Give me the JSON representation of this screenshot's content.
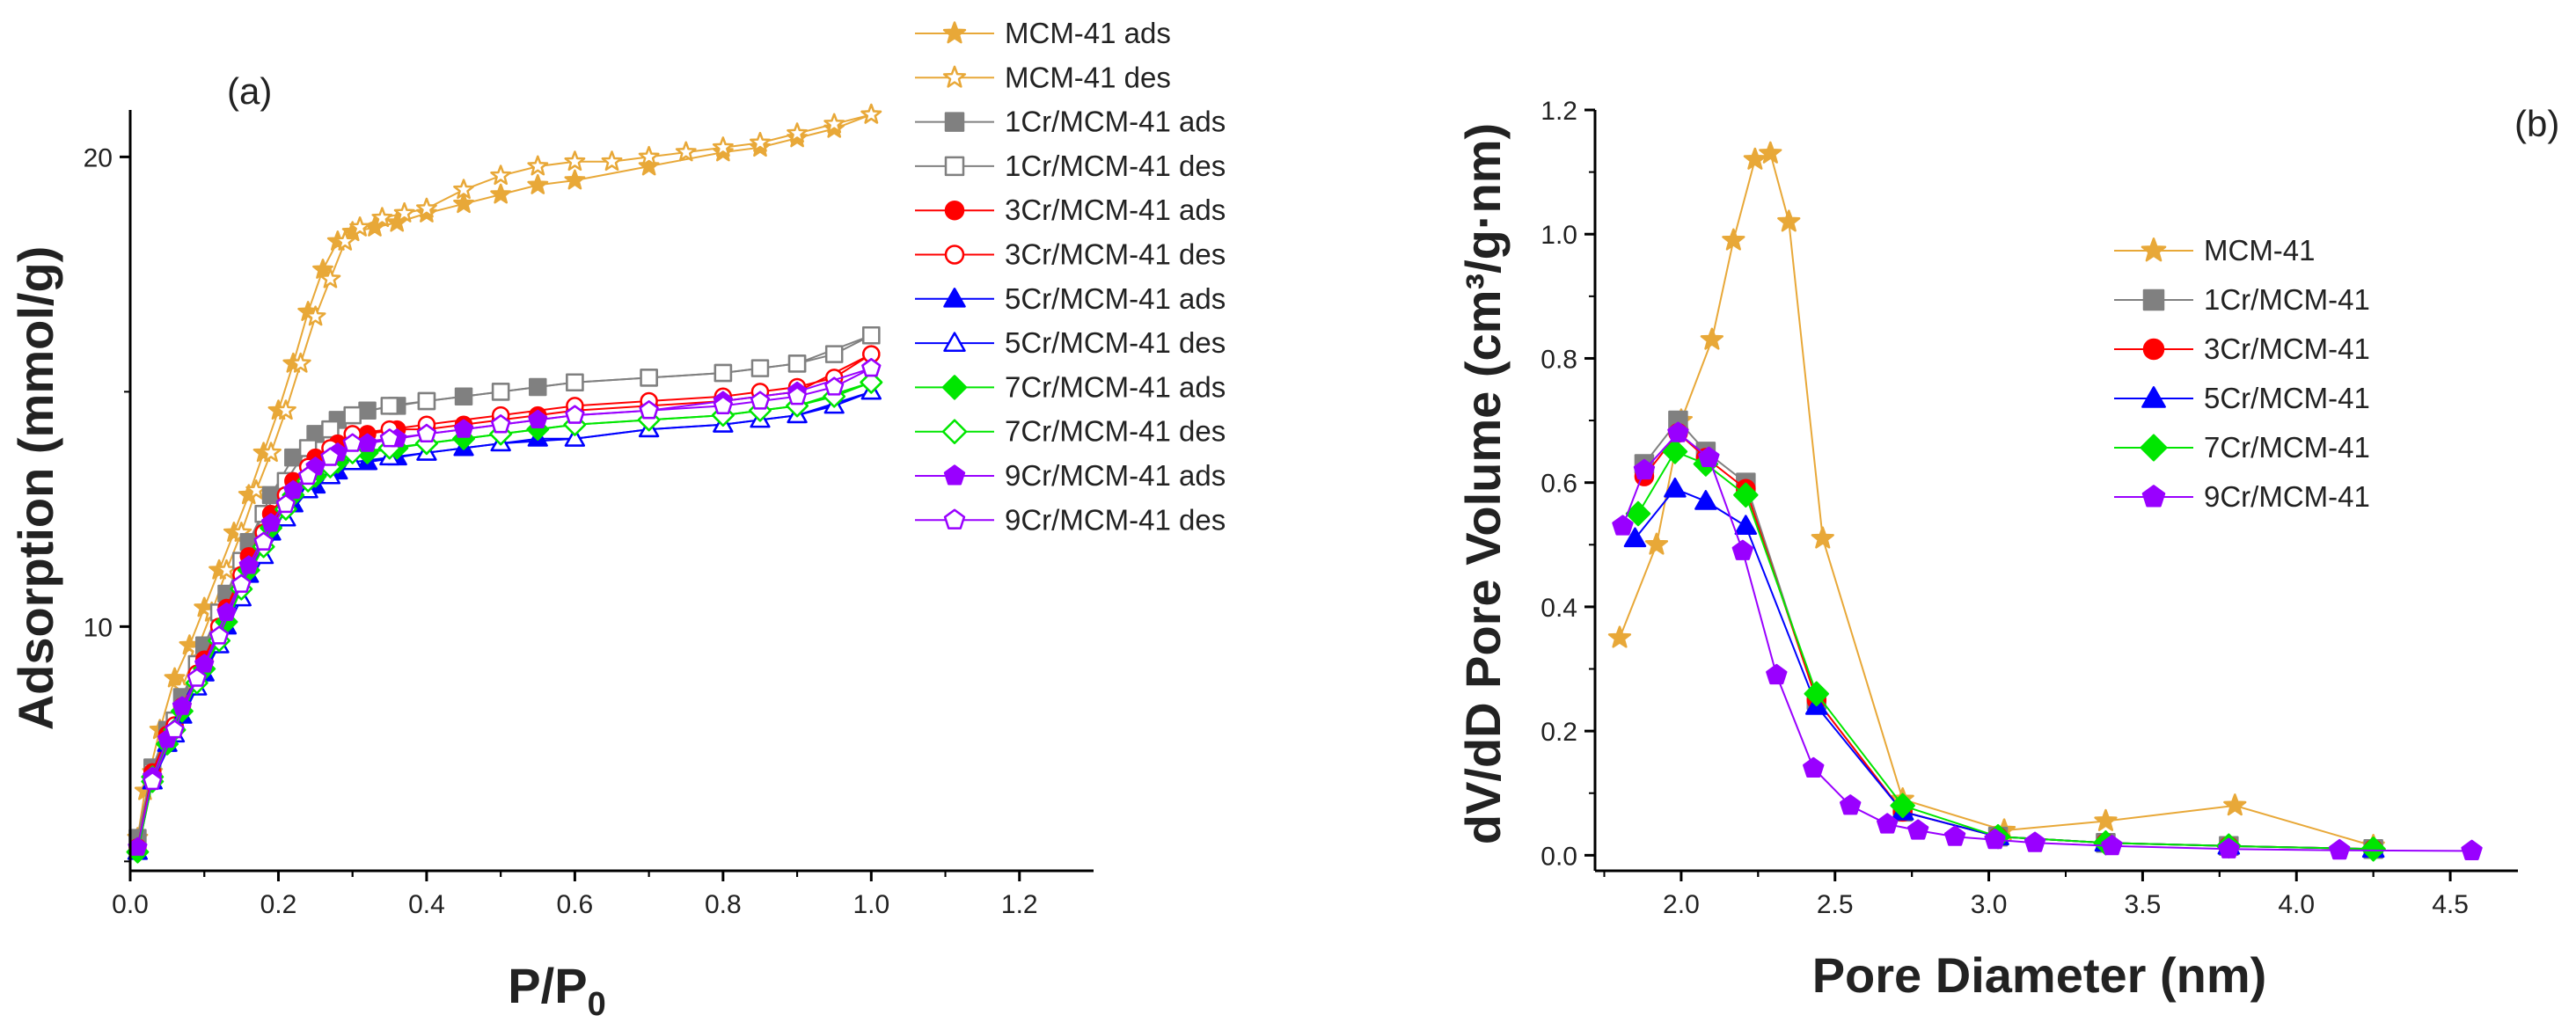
{
  "colors": {
    "MCM41": "#E8A838",
    "Cr1": "#808080",
    "Cr3": "#FF0000",
    "Cr5": "#0000FF",
    "Cr7": "#00E600",
    "Cr9": "#9900FF",
    "axis": "#000000"
  },
  "chart_data": [
    {
      "type": "line",
      "panel_label": "(a)",
      "xlabel": "P/P",
      "xlabel_sub": "0",
      "ylabel": "Adsorption (mmol/g)",
      "xlim": [
        0.0,
        1.3
      ],
      "ylim": [
        4.8,
        21.0
      ],
      "xticks": [
        0.0,
        0.2,
        0.4,
        0.6,
        0.8,
        1.0,
        1.2
      ],
      "xtick_labels": [
        "0.0",
        "0.2",
        "0.4",
        "0.6",
        "0.8",
        "1.0",
        "1.2"
      ],
      "yticks": [
        10,
        20
      ],
      "ytick_labels": [
        "10",
        "20"
      ],
      "legend_position": "top-right outside",
      "series": [
        {
          "name": "MCM-41 ads",
          "color_key": "MCM41",
          "marker": "star",
          "filled": true,
          "x": [
            0.01,
            0.02,
            0.04,
            0.06,
            0.08,
            0.1,
            0.12,
            0.14,
            0.16,
            0.18,
            0.2,
            0.22,
            0.24,
            0.26,
            0.28,
            0.3,
            0.33,
            0.36,
            0.4,
            0.45,
            0.5,
            0.55,
            0.6,
            0.7,
            0.8,
            0.85,
            0.9,
            0.95,
            1.0
          ],
          "y": [
            5.5,
            6.5,
            7.8,
            8.9,
            9.6,
            10.4,
            11.2,
            12.0,
            12.8,
            13.7,
            14.6,
            15.6,
            16.7,
            17.6,
            18.2,
            18.4,
            18.5,
            18.6,
            18.8,
            19.0,
            19.2,
            19.4,
            19.5,
            19.8,
            20.1,
            20.2,
            20.4,
            20.6,
            20.9
          ]
        },
        {
          "name": "MCM-41 des",
          "color_key": "MCM41",
          "marker": "star",
          "filled": false,
          "x": [
            1.0,
            0.95,
            0.9,
            0.85,
            0.8,
            0.75,
            0.7,
            0.65,
            0.6,
            0.55,
            0.5,
            0.45,
            0.4,
            0.37,
            0.34,
            0.31,
            0.29,
            0.27,
            0.25,
            0.23,
            0.21,
            0.19,
            0.17,
            0.15,
            0.13,
            0.11,
            0.09,
            0.07,
            0.05,
            0.03
          ],
          "y": [
            20.9,
            20.7,
            20.5,
            20.3,
            20.2,
            20.1,
            20.0,
            19.9,
            19.9,
            19.8,
            19.6,
            19.3,
            18.9,
            18.8,
            18.7,
            18.5,
            18.2,
            17.4,
            16.6,
            15.6,
            14.6,
            13.7,
            12.9,
            12.0,
            11.2,
            10.3,
            9.5,
            8.7,
            7.8,
            6.9
          ]
        },
        {
          "name": "1Cr/MCM-41 ads",
          "color_key": "Cr1",
          "marker": "square",
          "filled": true,
          "x": [
            0.01,
            0.03,
            0.05,
            0.07,
            0.1,
            0.13,
            0.16,
            0.19,
            0.22,
            0.25,
            0.28,
            0.32,
            0.36,
            0.4,
            0.45,
            0.5,
            0.55,
            0.6,
            0.7,
            0.8,
            0.9,
            1.0
          ],
          "y": [
            5.5,
            7.0,
            7.8,
            8.5,
            9.6,
            10.7,
            11.8,
            12.8,
            13.6,
            14.1,
            14.4,
            14.6,
            14.7,
            14.8,
            14.9,
            15.0,
            15.1,
            15.2,
            15.3,
            15.4,
            15.6,
            16.2
          ]
        },
        {
          "name": "1Cr/MCM-41 des",
          "color_key": "Cr1",
          "marker": "square",
          "filled": false,
          "x": [
            1.0,
            0.95,
            0.9,
            0.85,
            0.8,
            0.7,
            0.6,
            0.5,
            0.4,
            0.35,
            0.3,
            0.27,
            0.24,
            0.21,
            0.18,
            0.15,
            0.12,
            0.09,
            0.06,
            0.03
          ],
          "y": [
            16.2,
            15.8,
            15.6,
            15.5,
            15.4,
            15.3,
            15.2,
            15.0,
            14.8,
            14.7,
            14.5,
            14.2,
            13.8,
            13.1,
            12.4,
            11.4,
            10.3,
            9.2,
            8.0,
            6.9
          ]
        },
        {
          "name": "3Cr/MCM-41 ads",
          "color_key": "Cr3",
          "marker": "circle",
          "filled": true,
          "x": [
            0.01,
            0.03,
            0.05,
            0.07,
            0.1,
            0.13,
            0.16,
            0.19,
            0.22,
            0.25,
            0.28,
            0.32,
            0.36,
            0.4,
            0.45,
            0.5,
            0.55,
            0.6,
            0.7,
            0.8,
            0.9,
            1.0
          ],
          "y": [
            5.3,
            6.9,
            7.7,
            8.3,
            9.3,
            10.4,
            11.5,
            12.4,
            13.1,
            13.6,
            13.9,
            14.1,
            14.2,
            14.2,
            14.3,
            14.4,
            14.5,
            14.6,
            14.7,
            14.8,
            15.0,
            15.8
          ]
        },
        {
          "name": "3Cr/MCM-41 des",
          "color_key": "Cr3",
          "marker": "circle",
          "filled": false,
          "x": [
            1.0,
            0.95,
            0.9,
            0.85,
            0.8,
            0.7,
            0.6,
            0.5,
            0.4,
            0.35,
            0.3,
            0.27,
            0.24,
            0.21,
            0.18,
            0.15,
            0.12,
            0.09,
            0.06,
            0.03
          ],
          "y": [
            15.8,
            15.3,
            15.1,
            15.0,
            14.9,
            14.8,
            14.7,
            14.5,
            14.3,
            14.2,
            14.1,
            13.8,
            13.4,
            12.8,
            12.0,
            11.1,
            10.0,
            9.0,
            7.9,
            6.8
          ]
        },
        {
          "name": "5Cr/MCM-41 ads",
          "color_key": "Cr5",
          "marker": "triangle",
          "filled": true,
          "x": [
            0.01,
            0.03,
            0.05,
            0.07,
            0.1,
            0.13,
            0.16,
            0.19,
            0.22,
            0.25,
            0.28,
            0.32,
            0.36,
            0.4,
            0.45,
            0.5,
            0.55,
            0.6,
            0.7,
            0.8,
            0.9,
            1.0
          ],
          "y": [
            5.2,
            6.7,
            7.5,
            8.1,
            9.0,
            10.0,
            11.1,
            12.0,
            12.6,
            13.0,
            13.3,
            13.5,
            13.6,
            13.7,
            13.8,
            13.9,
            14.0,
            14.0,
            14.2,
            14.3,
            14.5,
            15.0
          ]
        },
        {
          "name": "5Cr/MCM-41 des",
          "color_key": "Cr5",
          "marker": "triangle",
          "filled": false,
          "x": [
            1.0,
            0.95,
            0.9,
            0.85,
            0.8,
            0.7,
            0.6,
            0.5,
            0.4,
            0.35,
            0.3,
            0.27,
            0.24,
            0.21,
            0.18,
            0.15,
            0.12,
            0.09,
            0.06,
            0.03
          ],
          "y": [
            15.0,
            14.7,
            14.5,
            14.4,
            14.3,
            14.2,
            14.0,
            13.9,
            13.7,
            13.6,
            13.5,
            13.2,
            12.9,
            12.3,
            11.5,
            10.6,
            9.6,
            8.7,
            7.7,
            6.7
          ]
        },
        {
          "name": "7Cr/MCM-41 ads",
          "color_key": "Cr7",
          "marker": "diamond",
          "filled": true,
          "x": [
            0.01,
            0.03,
            0.05,
            0.07,
            0.1,
            0.13,
            0.16,
            0.19,
            0.22,
            0.25,
            0.28,
            0.32,
            0.36,
            0.4,
            0.45,
            0.5,
            0.55,
            0.6,
            0.7,
            0.8,
            0.9,
            1.0
          ],
          "y": [
            5.2,
            6.7,
            7.5,
            8.2,
            9.1,
            10.1,
            11.2,
            12.1,
            12.8,
            13.2,
            13.5,
            13.7,
            13.8,
            13.9,
            14.0,
            14.1,
            14.2,
            14.3,
            14.4,
            14.5,
            14.7,
            15.2
          ]
        },
        {
          "name": "7Cr/MCM-41 des",
          "color_key": "Cr7",
          "marker": "diamond",
          "filled": false,
          "x": [
            1.0,
            0.95,
            0.9,
            0.85,
            0.8,
            0.7,
            0.6,
            0.5,
            0.4,
            0.35,
            0.3,
            0.27,
            0.24,
            0.21,
            0.18,
            0.15,
            0.12,
            0.09,
            0.06,
            0.03
          ],
          "y": [
            15.2,
            14.9,
            14.7,
            14.6,
            14.5,
            14.4,
            14.3,
            14.1,
            13.9,
            13.8,
            13.7,
            13.4,
            13.1,
            12.5,
            11.7,
            10.8,
            9.7,
            8.8,
            7.8,
            6.8
          ]
        },
        {
          "name": "9Cr/MCM-41 ads",
          "color_key": "Cr9",
          "marker": "pentagon",
          "filled": true,
          "x": [
            0.01,
            0.03,
            0.05,
            0.07,
            0.1,
            0.13,
            0.16,
            0.19,
            0.22,
            0.25,
            0.28,
            0.32,
            0.36,
            0.4,
            0.45,
            0.5,
            0.55,
            0.6,
            0.7,
            0.8,
            0.9,
            1.0
          ],
          "y": [
            5.3,
            6.8,
            7.6,
            8.3,
            9.2,
            10.3,
            11.3,
            12.2,
            12.9,
            13.4,
            13.7,
            13.9,
            14.0,
            14.1,
            14.2,
            14.3,
            14.4,
            14.5,
            14.6,
            14.8,
            15.0,
            15.5
          ]
        },
        {
          "name": "9Cr/MCM-41 des",
          "color_key": "Cr9",
          "marker": "pentagon",
          "filled": false,
          "x": [
            1.0,
            0.95,
            0.9,
            0.85,
            0.8,
            0.7,
            0.6,
            0.5,
            0.4,
            0.35,
            0.3,
            0.27,
            0.24,
            0.21,
            0.18,
            0.15,
            0.12,
            0.09,
            0.06,
            0.03
          ],
          "y": [
            15.5,
            15.1,
            14.9,
            14.8,
            14.7,
            14.6,
            14.5,
            14.3,
            14.1,
            14.0,
            13.9,
            13.6,
            13.2,
            12.6,
            11.8,
            10.9,
            9.8,
            8.9,
            7.8,
            6.7
          ]
        }
      ]
    },
    {
      "type": "line",
      "panel_label": "(b)",
      "xlabel": "Pore Diameter (nm)",
      "ylabel": "dV/dD Pore Volume (cm³/g·nm)",
      "xlim": [
        1.72,
        4.72
      ],
      "ylim": [
        -0.025,
        1.2
      ],
      "xticks": [
        2.0,
        2.5,
        3.0,
        3.5,
        4.0,
        4.5
      ],
      "xtick_labels": [
        "2.0",
        "2.5",
        "3.0",
        "3.5",
        "4.0",
        "4.5"
      ],
      "yticks": [
        0.0,
        0.2,
        0.4,
        0.6,
        0.8,
        1.0,
        1.2
      ],
      "ytick_labels": [
        "0.0",
        "0.2",
        "0.4",
        "0.6",
        "0.8",
        "1.0",
        "1.2"
      ],
      "legend_position": "center-right",
      "series": [
        {
          "name": "MCM-41",
          "color_key": "MCM41",
          "marker": "star",
          "filled": true,
          "x": [
            1.8,
            1.92,
            2.0,
            2.1,
            2.17,
            2.24,
            2.29,
            2.35,
            2.46,
            2.72,
            3.05,
            3.38,
            3.8,
            4.25
          ],
          "y": [
            0.35,
            0.5,
            0.7,
            0.83,
            0.99,
            1.12,
            1.13,
            1.02,
            0.51,
            0.09,
            0.04,
            0.055,
            0.08,
            0.015
          ]
        },
        {
          "name": "1Cr/MCM-41",
          "color_key": "Cr1",
          "marker": "square",
          "filled": true,
          "x": [
            1.88,
            1.99,
            2.08,
            2.21,
            2.44,
            2.72,
            3.03,
            3.38,
            3.78,
            4.25
          ],
          "y": [
            0.63,
            0.7,
            0.65,
            0.6,
            0.25,
            0.07,
            0.03,
            0.02,
            0.015,
            0.01
          ]
        },
        {
          "name": "3Cr/MCM-41",
          "color_key": "Cr3",
          "marker": "circle",
          "filled": true,
          "x": [
            1.88,
            1.99,
            2.08,
            2.21,
            2.44,
            2.72,
            3.03,
            3.38,
            3.78,
            4.25
          ],
          "y": [
            0.61,
            0.68,
            0.64,
            0.59,
            0.25,
            0.07,
            0.03,
            0.02,
            0.015,
            0.01
          ]
        },
        {
          "name": "5Cr/MCM-41",
          "color_key": "Cr5",
          "marker": "triangle",
          "filled": true,
          "x": [
            1.85,
            1.98,
            2.08,
            2.21,
            2.44,
            2.72,
            3.03,
            3.38,
            3.78,
            4.25
          ],
          "y": [
            0.51,
            0.59,
            0.57,
            0.53,
            0.24,
            0.07,
            0.03,
            0.02,
            0.015,
            0.01
          ]
        },
        {
          "name": "7Cr/MCM-41",
          "color_key": "Cr7",
          "marker": "diamond",
          "filled": true,
          "x": [
            1.86,
            1.98,
            2.08,
            2.21,
            2.44,
            2.72,
            3.03,
            3.38,
            3.78,
            4.25
          ],
          "y": [
            0.55,
            0.65,
            0.63,
            0.58,
            0.26,
            0.08,
            0.03,
            0.02,
            0.015,
            0.01
          ]
        },
        {
          "name": "9Cr/MCM-41",
          "color_key": "Cr9",
          "marker": "pentagon",
          "filled": true,
          "x": [
            1.81,
            1.88,
            1.99,
            2.09,
            2.2,
            2.31,
            2.43,
            2.55,
            2.67,
            2.77,
            2.89,
            3.02,
            3.15,
            3.4,
            3.78,
            4.14,
            4.57
          ],
          "y": [
            0.53,
            0.62,
            0.68,
            0.64,
            0.49,
            0.29,
            0.14,
            0.08,
            0.05,
            0.04,
            0.03,
            0.025,
            0.02,
            0.015,
            0.01,
            0.008,
            0.007
          ]
        }
      ]
    }
  ]
}
